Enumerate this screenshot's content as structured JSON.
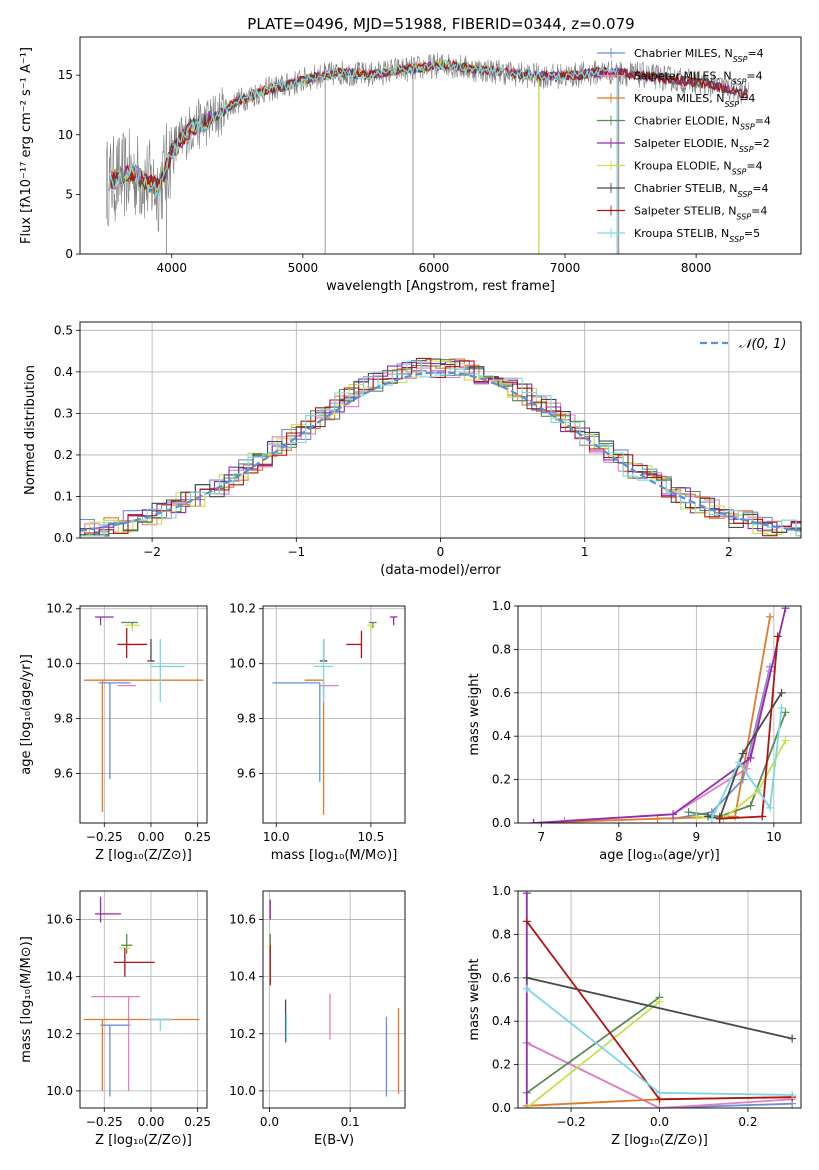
{
  "figure_title": "PLATE=0496, MJD=51988, FIBERID=0344, z=0.079",
  "colors": {
    "Chabrier MILES": "#6b8fd6",
    "Salpeter MILES": "#e57fc1",
    "Kroupa MILES": "#e07b2a",
    "Chabrier ELODIE": "#5a8a55",
    "Salpeter ELODIE": "#8f2db0",
    "Kroupa ELODIE": "#c8e04a",
    "Chabrier STELIB": "#4a4a4a",
    "Salpeter STELIB": "#b01515",
    "Kroupa STELIB": "#7ed7e0",
    "normal": "#5b8fd6",
    "data": "#7f7f7f"
  },
  "chart_data": [
    {
      "id": "spectrum",
      "type": "line",
      "title": "PLATE=0496, MJD=51988, FIBERID=0344, z=0.079",
      "xlabel": "wavelength [Angstrom, rest frame]",
      "ylabel": "Flux [fλ10⁻¹⁷ erg cm⁻² s⁻¹ A⁻¹]",
      "xlim": [
        3300,
        8800
      ],
      "ylim": [
        0,
        18.2
      ],
      "xticks": [
        "4000",
        "5000",
        "6000",
        "7000",
        "8000"
      ],
      "yticks": [
        "0",
        "5",
        "10",
        "15"
      ],
      "continuum": {
        "x": [
          3500,
          3700,
          3900,
          4000,
          4150,
          4300,
          4500,
          4700,
          4900,
          5100,
          5300,
          5500,
          5700,
          5900,
          6100,
          6300,
          6500,
          6700,
          6900,
          7100,
          7300,
          7500,
          7800,
          8100,
          8400
        ],
        "y": [
          6.0,
          6.8,
          5.5,
          8.6,
          10.6,
          11.3,
          12.8,
          13.7,
          14.2,
          14.9,
          15.2,
          15.0,
          15.4,
          15.6,
          15.9,
          15.5,
          15.3,
          15.0,
          14.9,
          15.0,
          15.3,
          15.1,
          14.7,
          14.2,
          13.4
        ]
      },
      "legend": [
        "Chabrier MILES, N_SSP=4",
        "Salpeter MILES, N_SSP=4",
        "Kroupa MILES, N_SSP=4",
        "Chabrier ELODIE, N_SSP=4",
        "Salpeter ELODIE, N_SSP=2",
        "Kroupa ELODIE, N_SSP=4",
        "Chabrier STELIB, N_SSP=4",
        "Salpeter STELIB, N_SSP=4",
        "Kroupa STELIB, N_SSP=5"
      ],
      "legend_display": [
        {
          "pre": "Chabrier MILES, N",
          "sub": "SSP",
          "post": "=4"
        },
        {
          "pre": "Salpeter MILES, N",
          "sub": "SSP",
          "post": "=4"
        },
        {
          "pre": "Kroupa MILES, N",
          "sub": "SSP",
          "post": "=4"
        },
        {
          "pre": "Chabrier ELODIE, N",
          "sub": "SSP",
          "post": "=4"
        },
        {
          "pre": "Salpeter ELODIE, N",
          "sub": "SSP",
          "post": "=2"
        },
        {
          "pre": "Kroupa ELODIE, N",
          "sub": "SSP",
          "post": "=4"
        },
        {
          "pre": "Chabrier STELIB, N",
          "sub": "SSP",
          "post": "=4"
        },
        {
          "pre": "Salpeter STELIB, N",
          "sub": "SSP",
          "post": "=4"
        },
        {
          "pre": "Kroupa STELIB, N",
          "sub": "SSP",
          "post": "=5"
        }
      ],
      "legend_placement": "upper-right",
      "grid": false
    },
    {
      "id": "residuals",
      "type": "histogram",
      "xlabel": "(data-model)/error",
      "ylabel": "Normed distribution",
      "xlim": [
        -2.5,
        2.5
      ],
      "ylim": [
        0,
        0.52
      ],
      "xticks": [
        "−2",
        "−1",
        "0",
        "1",
        "2"
      ],
      "yticks": [
        "0.0",
        "0.1",
        "0.2",
        "0.3",
        "0.4",
        "0.5"
      ],
      "bin_width": 0.1,
      "legend": [
        "𝒩(0, 1)"
      ],
      "legend_placement": "upper-right",
      "grid": true
    },
    {
      "id": "age-vs-Z",
      "type": "scatter",
      "xlabel": "Z [log₁₀(Z/Z⊙)]",
      "ylabel": "age  [log₁₀(age/yr)]",
      "xlim": [
        -0.38,
        0.3
      ],
      "ylim": [
        9.42,
        10.21
      ],
      "xticks": [
        "−0.25",
        "0.00",
        "0.25"
      ],
      "yticks": [
        "9.6",
        "9.8",
        "10.0",
        "10.2"
      ],
      "points": [
        {
          "series": "Chabrier MILES",
          "x": -0.22,
          "y": 9.93
        },
        {
          "series": "Salpeter MILES",
          "x": -0.13,
          "y": 9.92
        },
        {
          "series": "Kroupa MILES",
          "x": -0.26,
          "y": 9.94
        },
        {
          "series": "Chabrier ELODIE",
          "x": -0.1,
          "y": 10.15
        },
        {
          "series": "Salpeter ELODIE",
          "x": -0.27,
          "y": 10.17
        },
        {
          "series": "Kroupa ELODIE",
          "x": -0.1,
          "y": 10.14
        },
        {
          "series": "Chabrier STELIB",
          "x": 0.0,
          "y": 10.01
        },
        {
          "series": "Salpeter STELIB",
          "x": -0.13,
          "y": 10.07
        },
        {
          "series": "Kroupa STELIB",
          "x": 0.05,
          "y": 9.99
        }
      ],
      "grid": true
    },
    {
      "id": "age-vs-mass",
      "type": "scatter",
      "xlabel": "mass [log₁₀(M/M⊙)]",
      "ylabel": "",
      "xlim": [
        9.93,
        10.68
      ],
      "ylim": [
        9.42,
        10.21
      ],
      "xticks": [
        "10.0",
        "10.5"
      ],
      "yticks": [
        "9.6",
        "9.8",
        "10.0",
        "10.2"
      ],
      "points": [
        {
          "series": "Chabrier MILES",
          "x": 10.23,
          "y": 9.93
        },
        {
          "series": "Salpeter MILES",
          "x": 10.33,
          "y": 9.92
        },
        {
          "series": "Kroupa MILES",
          "x": 10.25,
          "y": 9.94
        },
        {
          "series": "Chabrier ELODIE",
          "x": 10.51,
          "y": 10.15
        },
        {
          "series": "Salpeter ELODIE",
          "x": 10.62,
          "y": 10.17
        },
        {
          "series": "Kroupa ELODIE",
          "x": 10.5,
          "y": 10.14
        },
        {
          "series": "Chabrier STELIB",
          "x": 10.25,
          "y": 10.01
        },
        {
          "series": "Salpeter STELIB",
          "x": 10.45,
          "y": 10.07
        },
        {
          "series": "Kroupa STELIB",
          "x": 10.25,
          "y": 9.99
        }
      ],
      "grid": true
    },
    {
      "id": "weight-vs-age",
      "type": "line",
      "xlabel": "age  [log₁₀(age/yr)]",
      "ylabel": "mass weight",
      "xlim": [
        6.7,
        10.35
      ],
      "ylim": [
        0,
        1.0
      ],
      "xticks": [
        "7",
        "8",
        "9",
        "10"
      ],
      "yticks": [
        "0.0",
        "0.2",
        "0.4",
        "0.6",
        "0.8",
        "1.0"
      ],
      "series": [
        {
          "name": "Chabrier MILES",
          "x": [
            8.7,
            9.2,
            9.6,
            9.95
          ],
          "y": [
            0.02,
            0.05,
            0.2,
            0.72
          ]
        },
        {
          "name": "Salpeter MILES",
          "x": [
            7.3,
            8.7,
            9.65,
            9.95
          ],
          "y": [
            0.01,
            0.04,
            0.25,
            0.7
          ]
        },
        {
          "name": "Kroupa MILES",
          "x": [
            6.9,
            8.5,
            9.5,
            9.95
          ],
          "y": [
            0.0,
            0.02,
            0.03,
            0.95
          ]
        },
        {
          "name": "Chabrier ELODIE",
          "x": [
            8.9,
            9.3,
            9.7,
            10.15
          ],
          "y": [
            0.05,
            0.03,
            0.08,
            0.51
          ]
        },
        {
          "name": "Salpeter ELODIE",
          "x": [
            6.9,
            8.7,
            9.7,
            10.15
          ],
          "y": [
            0.0,
            0.04,
            0.3,
            0.99
          ]
        },
        {
          "name": "Kroupa ELODIE",
          "x": [
            9.0,
            9.35,
            9.8,
            10.15
          ],
          "y": [
            0.03,
            0.02,
            0.15,
            0.38
          ]
        },
        {
          "name": "Chabrier STELIB",
          "x": [
            9.15,
            9.3,
            9.6,
            10.1
          ],
          "y": [
            0.03,
            0.02,
            0.32,
            0.6
          ]
        },
        {
          "name": "Salpeter STELIB",
          "x": [
            9.3,
            9.85,
            10.05
          ],
          "y": [
            0.02,
            0.03,
            0.86
          ]
        },
        {
          "name": "Kroupa STELIB",
          "x": [
            9.2,
            9.55,
            9.95,
            10.1
          ],
          "y": [
            0.02,
            0.28,
            0.07,
            0.53
          ]
        }
      ],
      "grid": true
    },
    {
      "id": "mass-vs-Z",
      "type": "scatter",
      "xlabel": "Z [log₁₀(Z/Z⊙)]",
      "ylabel": "mass [log₁₀(M/M⊙)]",
      "xlim": [
        -0.38,
        0.3
      ],
      "ylim": [
        9.94,
        10.7
      ],
      "xticks": [
        "−0.25",
        "0.00",
        "0.25"
      ],
      "yticks": [
        "10.0",
        "10.2",
        "10.4",
        "10.6"
      ],
      "points": [
        {
          "series": "Chabrier MILES",
          "x": -0.22,
          "y": 10.23
        },
        {
          "series": "Salpeter MILES",
          "x": -0.12,
          "y": 10.33
        },
        {
          "series": "Kroupa MILES",
          "x": -0.26,
          "y": 10.25
        },
        {
          "series": "Chabrier ELODIE",
          "x": -0.13,
          "y": 10.51
        },
        {
          "series": "Salpeter ELODIE",
          "x": -0.27,
          "y": 10.62
        },
        {
          "series": "Kroupa ELODIE",
          "x": -0.14,
          "y": 10.5
        },
        {
          "series": "Chabrier STELIB",
          "x": 0.05,
          "y": 10.25
        },
        {
          "series": "Salpeter STELIB",
          "x": -0.14,
          "y": 10.45
        },
        {
          "series": "Kroupa STELIB",
          "x": 0.05,
          "y": 10.25
        }
      ],
      "grid": true
    },
    {
      "id": "mass-vs-ebv",
      "type": "scatter",
      "xlabel": "E(B-V)",
      "ylabel": "",
      "xlim": [
        -0.008,
        0.168
      ],
      "ylim": [
        9.94,
        10.7
      ],
      "xticks": [
        "0.0",
        "0.1"
      ],
      "yticks": [
        "10.0",
        "10.2",
        "10.4",
        "10.6"
      ],
      "points": [
        {
          "series": "Chabrier MILES",
          "x": 0.145,
          "y": 10.12
        },
        {
          "series": "Salpeter MILES",
          "x": 0.075,
          "y": 10.26
        },
        {
          "series": "Kroupa MILES",
          "x": 0.16,
          "y": 10.15
        },
        {
          "series": "Chabrier ELODIE",
          "x": 0.001,
          "y": 10.51
        },
        {
          "series": "Salpeter ELODIE",
          "x": 0.001,
          "y": 10.63
        },
        {
          "series": "Kroupa ELODIE",
          "x": 0.0,
          "y": 10.5
        },
        {
          "series": "Chabrier STELIB",
          "x": 0.02,
          "y": 10.25
        },
        {
          "series": "Salpeter STELIB",
          "x": 0.001,
          "y": 10.45
        },
        {
          "series": "Kroupa STELIB",
          "x": 0.021,
          "y": 10.22
        }
      ],
      "grid": true
    },
    {
      "id": "weight-vs-Z",
      "type": "line",
      "xlabel": "Z [log₁₀(Z/Z⊙)]",
      "ylabel": "mass weight",
      "xlim": [
        -0.32,
        0.32
      ],
      "ylim": [
        0,
        1.0
      ],
      "xticks": [
        "−0.2",
        "0.0",
        "0.2"
      ],
      "yticks": [
        "0.0",
        "0.2",
        "0.4",
        "0.6",
        "0.8",
        "1.0"
      ],
      "series": [
        {
          "name": "Chabrier MILES",
          "x": [
            -0.3,
            0.0,
            0.3
          ],
          "y": [
            0.3,
            0.0,
            0.02
          ]
        },
        {
          "name": "Salpeter MILES",
          "x": [
            -0.3,
            0.0,
            0.3
          ],
          "y": [
            0.3,
            0.0,
            0.04
          ]
        },
        {
          "name": "Kroupa MILES",
          "x": [
            -0.3,
            0.0,
            0.3
          ],
          "y": [
            0.01,
            0.04,
            0.05
          ]
        },
        {
          "name": "Chabrier ELODIE",
          "x": [
            -0.3,
            0.0
          ],
          "y": [
            0.07,
            0.51
          ]
        },
        {
          "name": "Salpeter ELODIE",
          "x": [
            -0.3,
            -0.3
          ],
          "y": [
            0.0,
            0.99
          ]
        },
        {
          "name": "Kroupa ELODIE",
          "x": [
            -0.3,
            0.0
          ],
          "y": [
            0.0,
            0.49
          ]
        },
        {
          "name": "Chabrier STELIB",
          "x": [
            -0.3,
            0.3
          ],
          "y": [
            0.6,
            0.32
          ]
        },
        {
          "name": "Salpeter STELIB",
          "x": [
            -0.3,
            0.0,
            0.3
          ],
          "y": [
            0.86,
            0.04,
            0.05
          ]
        },
        {
          "name": "Kroupa STELIB",
          "x": [
            -0.3,
            0.0,
            0.3
          ],
          "y": [
            0.55,
            0.07,
            0.06
          ]
        }
      ],
      "grid": true
    }
  ]
}
